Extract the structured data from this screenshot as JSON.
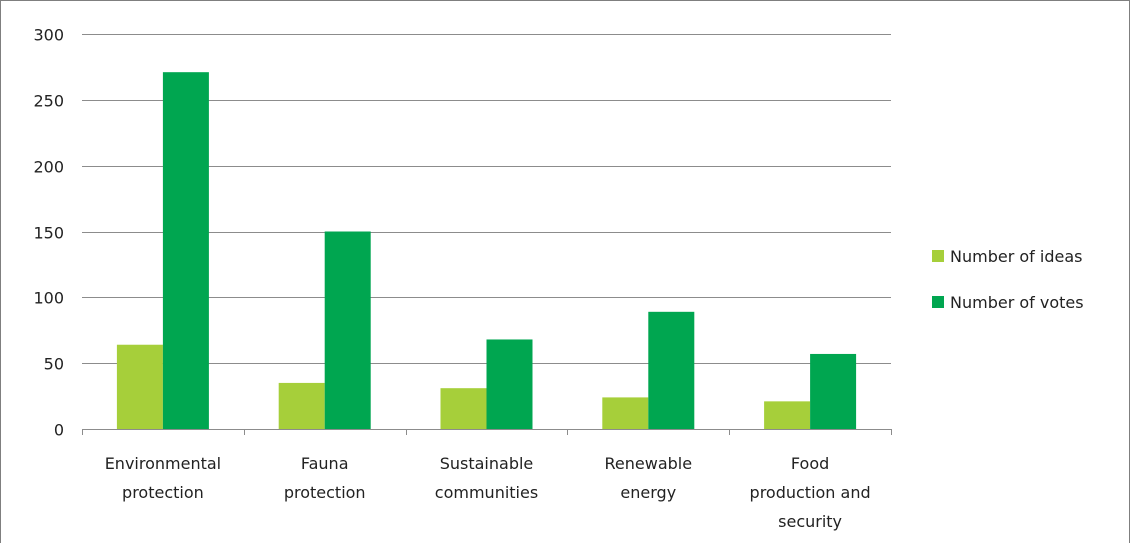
{
  "chart_data": {
    "type": "bar",
    "categories": [
      [
        "Environmental",
        "protection"
      ],
      [
        "Fauna",
        "protection"
      ],
      [
        "Sustainable",
        "communities"
      ],
      [
        "Renewable",
        "energy"
      ],
      [
        "Food",
        "production and",
        "security"
      ]
    ],
    "series": [
      {
        "name": "Number of ideas",
        "color": "#a6cf3a",
        "values": [
          64,
          35,
          31,
          24,
          21
        ]
      },
      {
        "name": "Number of votes",
        "color": "#00a650",
        "values": [
          271,
          150,
          68,
          89,
          57
        ]
      }
    ],
    "yticks": [
      "0",
      "50",
      "100",
      "150",
      "200",
      "250",
      "300"
    ],
    "ylim": [
      0,
      300
    ],
    "grid": true,
    "legend_position": "right",
    "colors": {
      "gridline": "#8c8c8c",
      "axis": "#8c8c8c"
    }
  }
}
